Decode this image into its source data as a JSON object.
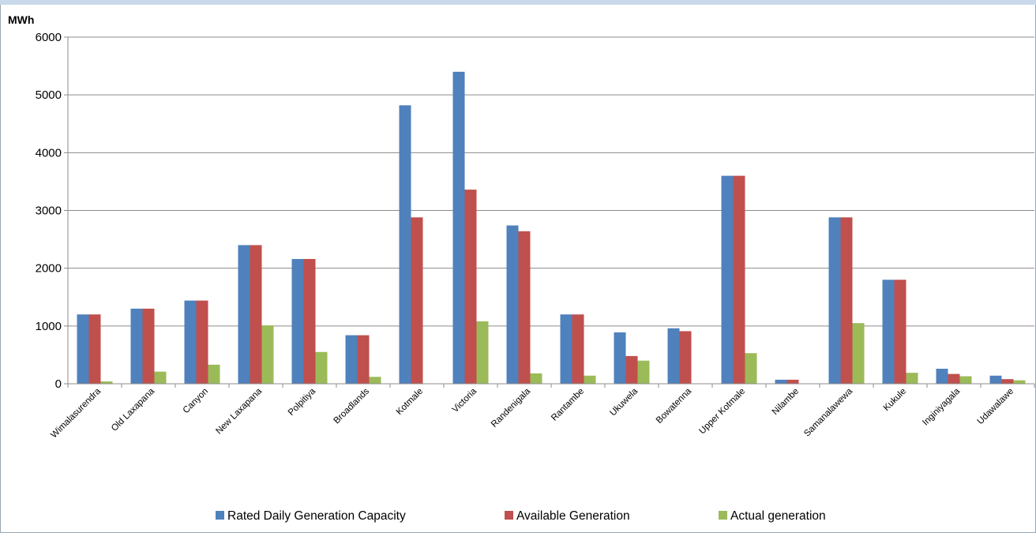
{
  "chart_data": {
    "type": "bar",
    "ylabel": "MWh",
    "ylim": [
      0,
      6000
    ],
    "yticks": [
      0,
      1000,
      2000,
      3000,
      4000,
      5000,
      6000
    ],
    "grid": true,
    "legend_position": "bottom",
    "categories": [
      "Wimalasurendra",
      "Old Laxapana",
      "Canyon",
      "New Laxapana",
      "Polpitiya",
      "Broadlands",
      "Kotmale",
      "Victoria",
      "Randenigala",
      "Rantambe",
      "Ukuwela",
      "Bowatenna",
      "Upper Kotmale",
      "Nilambe",
      "Samanalawewa",
      "Kukule",
      "Inginiyagala",
      "Udawalawe"
    ],
    "series": [
      {
        "name": "Rated Daily Generation Capacity",
        "color": "#4f81bd",
        "values": [
          1200,
          1300,
          1440,
          2400,
          2160,
          840,
          4820,
          5400,
          2740,
          1200,
          890,
          960,
          3600,
          70,
          2880,
          1800,
          260,
          140
        ]
      },
      {
        "name": "Available Generation",
        "color": "#c0504d",
        "values": [
          1200,
          1300,
          1440,
          2400,
          2160,
          840,
          2880,
          3360,
          2640,
          1200,
          480,
          910,
          3600,
          70,
          2880,
          1800,
          170,
          80
        ]
      },
      {
        "name": "Actual generation",
        "color": "#9bbb59",
        "values": [
          40,
          210,
          330,
          1010,
          550,
          120,
          0,
          1080,
          180,
          140,
          400,
          0,
          530,
          0,
          1050,
          190,
          130,
          60
        ]
      }
    ]
  }
}
